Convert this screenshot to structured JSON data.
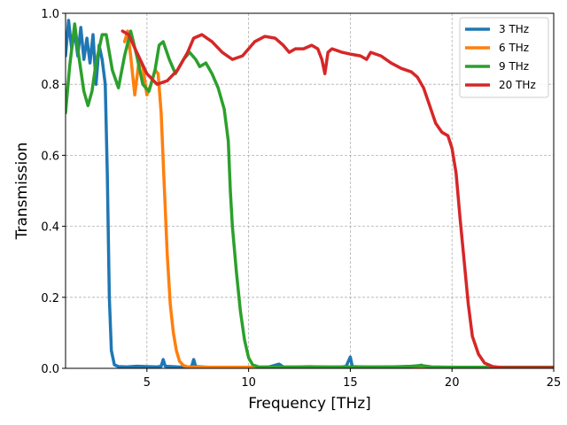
{
  "chart_data": {
    "type": "line",
    "xlabel": "Frequency [THz]",
    "ylabel": "Transmission",
    "xlim": [
      1,
      25
    ],
    "ylim": [
      0,
      1
    ],
    "grid": true,
    "legend_position": "top-right",
    "x_ticks": [
      5,
      10,
      15,
      20,
      25
    ],
    "y_ticks": [
      0.0,
      0.2,
      0.4,
      0.6,
      0.8,
      1.0
    ],
    "x_tick_labels": [
      "5",
      "10",
      "15",
      "20",
      "25"
    ],
    "y_tick_labels": [
      "0.0",
      "0.2",
      "0.4",
      "0.6",
      "0.8",
      "1.0"
    ],
    "series": [
      {
        "name": "3 THz",
        "color": "#1f77b4",
        "points": [
          [
            1.0,
            0.88
          ],
          [
            1.15,
            0.98
          ],
          [
            1.3,
            0.9
          ],
          [
            1.45,
            0.95
          ],
          [
            1.6,
            0.88
          ],
          [
            1.75,
            0.96
          ],
          [
            1.9,
            0.87
          ],
          [
            2.05,
            0.93
          ],
          [
            2.2,
            0.86
          ],
          [
            2.35,
            0.94
          ],
          [
            2.5,
            0.8
          ],
          [
            2.65,
            0.91
          ],
          [
            2.8,
            0.87
          ],
          [
            2.95,
            0.8
          ],
          [
            3.05,
            0.55
          ],
          [
            3.15,
            0.2
          ],
          [
            3.25,
            0.05
          ],
          [
            3.4,
            0.01
          ],
          [
            3.6,
            0.005
          ],
          [
            4.0,
            0.004
          ],
          [
            4.5,
            0.006
          ],
          [
            5.0,
            0.005
          ],
          [
            5.5,
            0.004
          ],
          [
            5.7,
            0.006
          ],
          [
            5.8,
            0.025
          ],
          [
            5.9,
            0.006
          ],
          [
            6.5,
            0.004
          ],
          [
            7.0,
            0.003
          ],
          [
            7.2,
            0.005
          ],
          [
            7.3,
            0.025
          ],
          [
            7.4,
            0.005
          ],
          [
            8.0,
            0.003
          ],
          [
            9.0,
            0.003
          ],
          [
            10.0,
            0.002
          ],
          [
            11.0,
            0.004
          ],
          [
            11.5,
            0.012
          ],
          [
            11.7,
            0.004
          ],
          [
            12.5,
            0.003
          ],
          [
            13.5,
            0.003
          ],
          [
            14.5,
            0.003
          ],
          [
            14.8,
            0.006
          ],
          [
            15.0,
            0.032
          ],
          [
            15.1,
            0.005
          ],
          [
            16.0,
            0.003
          ],
          [
            17.0,
            0.004
          ],
          [
            18.0,
            0.003
          ],
          [
            18.5,
            0.009
          ],
          [
            18.7,
            0.003
          ],
          [
            19.5,
            0.003
          ]
        ]
      },
      {
        "name": "6 THz",
        "color": "#ff7f0e",
        "points": [
          [
            3.9,
            0.92
          ],
          [
            4.05,
            0.95
          ],
          [
            4.2,
            0.88
          ],
          [
            4.4,
            0.77
          ],
          [
            4.6,
            0.86
          ],
          [
            4.8,
            0.85
          ],
          [
            5.0,
            0.77
          ],
          [
            5.2,
            0.8
          ],
          [
            5.4,
            0.84
          ],
          [
            5.55,
            0.83
          ],
          [
            5.7,
            0.72
          ],
          [
            5.85,
            0.52
          ],
          [
            6.0,
            0.32
          ],
          [
            6.15,
            0.18
          ],
          [
            6.3,
            0.1
          ],
          [
            6.45,
            0.05
          ],
          [
            6.6,
            0.02
          ],
          [
            6.8,
            0.008
          ],
          [
            7.0,
            0.004
          ],
          [
            8.0,
            0.003
          ],
          [
            10.0,
            0.003
          ],
          [
            12.0,
            0.003
          ],
          [
            13.0,
            0.005
          ],
          [
            14.0,
            0.003
          ],
          [
            16.0,
            0.003
          ],
          [
            18.0,
            0.003
          ],
          [
            19.5,
            0.003
          ]
        ]
      },
      {
        "name": "9 THz",
        "color": "#2ca02c",
        "points": [
          [
            1.0,
            0.72
          ],
          [
            1.2,
            0.85
          ],
          [
            1.45,
            0.97
          ],
          [
            1.65,
            0.88
          ],
          [
            1.9,
            0.78
          ],
          [
            2.1,
            0.74
          ],
          [
            2.3,
            0.78
          ],
          [
            2.5,
            0.86
          ],
          [
            2.8,
            0.94
          ],
          [
            3.0,
            0.94
          ],
          [
            3.3,
            0.84
          ],
          [
            3.6,
            0.79
          ],
          [
            3.9,
            0.88
          ],
          [
            4.2,
            0.95
          ],
          [
            4.5,
            0.88
          ],
          [
            4.8,
            0.8
          ],
          [
            5.1,
            0.78
          ],
          [
            5.4,
            0.84
          ],
          [
            5.6,
            0.91
          ],
          [
            5.8,
            0.92
          ],
          [
            6.1,
            0.87
          ],
          [
            6.4,
            0.83
          ],
          [
            6.8,
            0.87
          ],
          [
            7.1,
            0.89
          ],
          [
            7.4,
            0.87
          ],
          [
            7.6,
            0.85
          ],
          [
            7.9,
            0.86
          ],
          [
            8.2,
            0.83
          ],
          [
            8.5,
            0.79
          ],
          [
            8.8,
            0.73
          ],
          [
            9.0,
            0.64
          ],
          [
            9.1,
            0.5
          ],
          [
            9.2,
            0.4
          ],
          [
            9.4,
            0.27
          ],
          [
            9.6,
            0.16
          ],
          [
            9.8,
            0.08
          ],
          [
            10.0,
            0.03
          ],
          [
            10.2,
            0.01
          ],
          [
            10.5,
            0.004
          ],
          [
            11.0,
            0.003
          ],
          [
            13.0,
            0.004
          ],
          [
            15.0,
            0.004
          ],
          [
            17.0,
            0.004
          ],
          [
            18.0,
            0.006
          ],
          [
            18.5,
            0.008
          ],
          [
            19.0,
            0.004
          ],
          [
            20.0,
            0.003
          ],
          [
            25.0,
            0.003
          ]
        ]
      },
      {
        "name": "20 THz",
        "color": "#d62728",
        "points": [
          [
            3.8,
            0.95
          ],
          [
            4.1,
            0.94
          ],
          [
            4.5,
            0.89
          ],
          [
            5.0,
            0.83
          ],
          [
            5.5,
            0.8
          ],
          [
            6.0,
            0.81
          ],
          [
            6.5,
            0.84
          ],
          [
            7.0,
            0.89
          ],
          [
            7.3,
            0.93
          ],
          [
            7.7,
            0.94
          ],
          [
            8.2,
            0.92
          ],
          [
            8.7,
            0.89
          ],
          [
            9.2,
            0.87
          ],
          [
            9.7,
            0.88
          ],
          [
            10.3,
            0.92
          ],
          [
            10.8,
            0.935
          ],
          [
            11.3,
            0.93
          ],
          [
            11.7,
            0.91
          ],
          [
            12.0,
            0.89
          ],
          [
            12.3,
            0.9
          ],
          [
            12.7,
            0.9
          ],
          [
            13.1,
            0.91
          ],
          [
            13.4,
            0.9
          ],
          [
            13.6,
            0.87
          ],
          [
            13.75,
            0.83
          ],
          [
            13.9,
            0.89
          ],
          [
            14.1,
            0.9
          ],
          [
            14.6,
            0.89
          ],
          [
            15.0,
            0.885
          ],
          [
            15.5,
            0.88
          ],
          [
            15.8,
            0.87
          ],
          [
            16.0,
            0.89
          ],
          [
            16.5,
            0.88
          ],
          [
            17.0,
            0.86
          ],
          [
            17.5,
            0.845
          ],
          [
            18.0,
            0.835
          ],
          [
            18.3,
            0.82
          ],
          [
            18.6,
            0.79
          ],
          [
            18.9,
            0.74
          ],
          [
            19.2,
            0.69
          ],
          [
            19.5,
            0.665
          ],
          [
            19.8,
            0.655
          ],
          [
            20.0,
            0.62
          ],
          [
            20.2,
            0.55
          ],
          [
            20.4,
            0.42
          ],
          [
            20.6,
            0.3
          ],
          [
            20.8,
            0.18
          ],
          [
            21.0,
            0.09
          ],
          [
            21.3,
            0.04
          ],
          [
            21.6,
            0.015
          ],
          [
            22.0,
            0.005
          ],
          [
            22.5,
            0.002
          ],
          [
            25.0,
            0.002
          ]
        ]
      }
    ]
  }
}
